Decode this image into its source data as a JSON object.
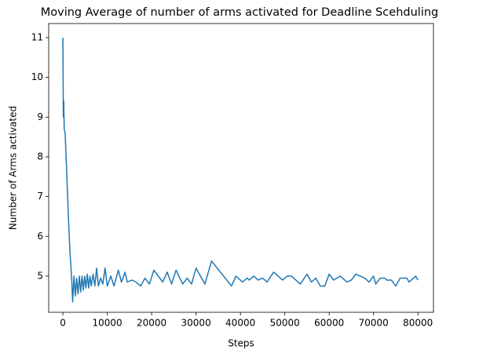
{
  "chart_data": {
    "type": "line",
    "title": "Moving Average of number of arms activated for Deadline Scehduling",
    "x_label": "Steps",
    "y_label": "Number of Arms activated",
    "color": "#1f77b4",
    "x": [
      0,
      100,
      200,
      300,
      500,
      800,
      1200,
      1600,
      2000,
      2200,
      2500,
      2800,
      3100,
      3400,
      3700,
      4000,
      4300,
      4600,
      4900,
      5200,
      5500,
      5800,
      6100,
      6400,
      6800,
      7200,
      7600,
      8000,
      8500,
      9000,
      9500,
      10000,
      10800,
      11500,
      12500,
      13200,
      14000,
      14500,
      15500,
      16500,
      17500,
      18500,
      19500,
      20500,
      22500,
      23500,
      24500,
      25500,
      27000,
      28000,
      29000,
      30000,
      32000,
      33500,
      38000,
      39000,
      40500,
      41500,
      42000,
      43000,
      44000,
      45000,
      46000,
      47500,
      49500,
      50500,
      51500,
      53500,
      55000,
      56000,
      57000,
      58000,
      59000,
      60000,
      61000,
      62500,
      63500,
      64000,
      65000,
      66000,
      67000,
      68000,
      69000,
      70000,
      70500,
      71500,
      72500,
      73000,
      74000,
      75000,
      76000,
      77500,
      78000,
      79000,
      79500,
      80000
    ],
    "values": [
      11.0,
      9.0,
      9.4,
      8.7,
      8.6,
      7.8,
      6.6,
      5.6,
      4.9,
      4.35,
      5.0,
      4.5,
      4.95,
      4.55,
      5.0,
      4.6,
      5.0,
      4.65,
      5.0,
      4.7,
      5.05,
      4.7,
      5.0,
      4.75,
      5.05,
      4.75,
      5.2,
      4.75,
      4.95,
      4.8,
      5.2,
      4.75,
      5.0,
      4.75,
      5.15,
      4.85,
      5.1,
      4.85,
      4.9,
      4.85,
      4.75,
      4.95,
      4.8,
      5.15,
      4.85,
      5.1,
      4.8,
      5.15,
      4.8,
      4.95,
      4.8,
      5.2,
      4.8,
      5.38,
      4.75,
      5.0,
      4.85,
      4.95,
      4.9,
      5.0,
      4.9,
      4.95,
      4.85,
      5.1,
      4.9,
      5.0,
      5.0,
      4.8,
      5.05,
      4.85,
      4.95,
      4.75,
      4.75,
      5.05,
      4.9,
      5.0,
      4.9,
      4.85,
      4.9,
      5.05,
      5.0,
      4.95,
      4.85,
      5.0,
      4.8,
      4.95,
      4.95,
      4.9,
      4.9,
      4.75,
      4.95,
      4.95,
      4.85,
      4.95,
      5.0,
      4.9
    ],
    "xlim": [
      -3200,
      83500
    ],
    "ylim": [
      4.09,
      11.355
    ],
    "xticks": [
      0,
      10000,
      20000,
      30000,
      40000,
      50000,
      60000,
      70000,
      80000
    ],
    "yticks": [
      5,
      6,
      7,
      8,
      9,
      10,
      11
    ]
  }
}
